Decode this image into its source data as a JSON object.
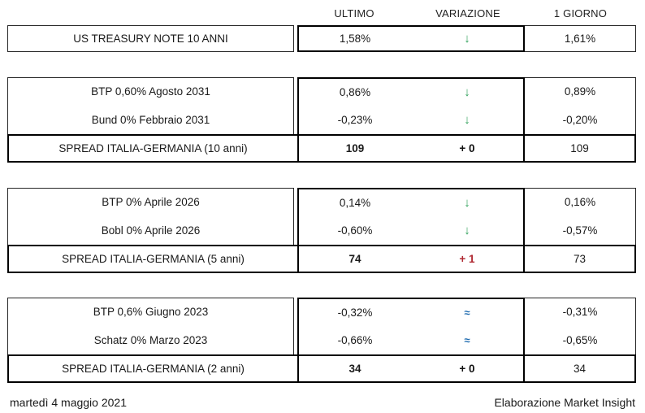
{
  "header": {
    "columns": [
      "ULTIMO",
      "VARIAZIONE",
      "1 GIORNO"
    ]
  },
  "sections": [
    {
      "rows": [
        {
          "label": "US TREASURY NOTE 10 ANNI",
          "ultimo": "1,58%",
          "direction": "down",
          "symbol": "↓",
          "giorno": "1,61%"
        }
      ]
    },
    {
      "rows": [
        {
          "label": "BTP 0,60% Agosto 2031",
          "ultimo": "0,86%",
          "direction": "down",
          "symbol": "↓",
          "giorno": "0,89%"
        },
        {
          "label": "Bund 0% Febbraio 2031",
          "ultimo": "-0,23%",
          "direction": "down",
          "symbol": "↓",
          "giorno": "-0,20%"
        },
        {
          "label": "SPREAD ITALIA-GERMANIA (10 anni)",
          "ultimo": "109",
          "change": "+ 0",
          "direction": "unchanged",
          "giorno": "109"
        }
      ]
    },
    {
      "rows": [
        {
          "label": "BTP 0% Aprile 2026",
          "ultimo": "0,14%",
          "direction": "down",
          "symbol": "↓",
          "giorno": "0,16%"
        },
        {
          "label": "Bobl 0% Aprile 2026",
          "ultimo": "-0,60%",
          "direction": "down",
          "symbol": "↓",
          "giorno": "-0,57%"
        },
        {
          "label": "SPREAD ITALIA-GERMANIA (5 anni)",
          "ultimo": "74",
          "change": "+ 1",
          "direction": "up",
          "giorno": "73"
        }
      ]
    },
    {
      "rows": [
        {
          "label": "BTP 0,6% Giugno 2023",
          "ultimo": "-0,32%",
          "direction": "flat",
          "symbol": "≈",
          "giorno": "-0,31%"
        },
        {
          "label": "Schatz 0% Marzo 2023",
          "ultimo": "-0,66%",
          "direction": "flat",
          "symbol": "≈",
          "giorno": "-0,65%"
        },
        {
          "label": "SPREAD ITALIA-GERMANIA (2 anni)",
          "ultimo": "34",
          "change": "+ 0",
          "direction": "unchanged",
          "giorno": "34"
        }
      ]
    }
  ],
  "footer": {
    "date": "martedì 4 maggio 2021",
    "credit": "Elaborazione Market Insight"
  },
  "colors": {
    "arrow_down_green": "#2EA05A",
    "approx_blue": "#1F6BB0",
    "spread_up_red": "#B02A33",
    "border_black": "#000000",
    "text": "#1A1A1A",
    "background": "#FFFFFF"
  }
}
